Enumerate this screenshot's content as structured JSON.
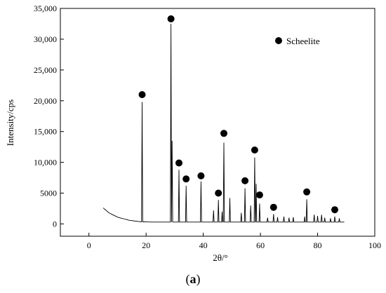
{
  "chart_data": {
    "type": "line",
    "xlabel": "2θ/°",
    "ylabel": "Intensity/cps",
    "xlim": [
      -10,
      100
    ],
    "ylim": [
      -2000,
      35000
    ],
    "x_ticks": [
      0,
      20,
      40,
      60,
      80,
      100
    ],
    "x_tick_labels": [
      "0",
      "20",
      "40",
      "60",
      "80",
      "100"
    ],
    "y_ticks": [
      0,
      5000,
      10000,
      15000,
      20000,
      25000,
      30000,
      35000
    ],
    "y_tick_labels": [
      "0",
      "5000",
      "10,000",
      "15,000",
      "20,000",
      "25,000",
      "30,000",
      "35,000"
    ],
    "grid": false,
    "legend_position": "top-right",
    "caption": {
      "open": "(",
      "letter": "a",
      "close": ")"
    },
    "series": [
      {
        "name": "Scheelite",
        "marker": "filled-circle",
        "color": "#000000",
        "baseline": [
          [
            5,
            2600
          ],
          [
            7,
            1800
          ],
          [
            10,
            1100
          ],
          [
            14,
            600
          ],
          [
            18,
            350
          ],
          [
            22,
            300
          ],
          [
            26,
            300
          ],
          [
            30,
            300
          ],
          [
            40,
            300
          ],
          [
            60,
            300
          ],
          [
            80,
            300
          ],
          [
            89.5,
            300
          ]
        ],
        "peaks": [
          {
            "x": 18.6,
            "y": 19800,
            "marker_y": 21000,
            "labeled": true
          },
          {
            "x": 28.7,
            "y": 32500,
            "marker_y": 33300,
            "labeled": true
          },
          {
            "x": 29.1,
            "y": 13500,
            "labeled": false
          },
          {
            "x": 31.5,
            "y": 8800,
            "marker_y": 9900,
            "labeled": true
          },
          {
            "x": 34.0,
            "y": 6200,
            "marker_y": 7300,
            "labeled": true
          },
          {
            "x": 39.2,
            "y": 6900,
            "marker_y": 7800,
            "labeled": true
          },
          {
            "x": 43.6,
            "y": 2200,
            "labeled": false
          },
          {
            "x": 45.3,
            "y": 3900,
            "marker_y": 5000,
            "labeled": true
          },
          {
            "x": 46.6,
            "y": 2000,
            "labeled": false
          },
          {
            "x": 47.2,
            "y": 13200,
            "marker_y": 14700,
            "labeled": true
          },
          {
            "x": 49.3,
            "y": 4200,
            "labeled": false
          },
          {
            "x": 53.3,
            "y": 1800,
            "labeled": false
          },
          {
            "x": 54.6,
            "y": 5800,
            "marker_y": 7000,
            "labeled": true
          },
          {
            "x": 56.6,
            "y": 3000,
            "labeled": false
          },
          {
            "x": 58.0,
            "y": 10800,
            "marker_y": 12000,
            "labeled": true
          },
          {
            "x": 58.5,
            "y": 6500,
            "labeled": false
          },
          {
            "x": 59.7,
            "y": 3300,
            "marker_y": 4700,
            "labeled": true
          },
          {
            "x": 62.5,
            "y": 1000,
            "labeled": false
          },
          {
            "x": 64.6,
            "y": 1600,
            "marker_y": 2700,
            "labeled": true
          },
          {
            "x": 66.0,
            "y": 1100,
            "labeled": false
          },
          {
            "x": 68.2,
            "y": 1200,
            "labeled": false
          },
          {
            "x": 70.0,
            "y": 1000,
            "labeled": false
          },
          {
            "x": 71.5,
            "y": 1100,
            "labeled": false
          },
          {
            "x": 75.5,
            "y": 1200,
            "labeled": false
          },
          {
            "x": 76.2,
            "y": 4000,
            "marker_y": 5200,
            "labeled": true
          },
          {
            "x": 78.8,
            "y": 1500,
            "labeled": false
          },
          {
            "x": 80.0,
            "y": 1300,
            "labeled": false
          },
          {
            "x": 81.4,
            "y": 1500,
            "labeled": false
          },
          {
            "x": 82.5,
            "y": 1000,
            "labeled": false
          },
          {
            "x": 84.5,
            "y": 900,
            "labeled": false
          },
          {
            "x": 86.0,
            "y": 1200,
            "marker_y": 2300,
            "labeled": true
          },
          {
            "x": 87.6,
            "y": 900,
            "labeled": false
          }
        ]
      }
    ]
  }
}
